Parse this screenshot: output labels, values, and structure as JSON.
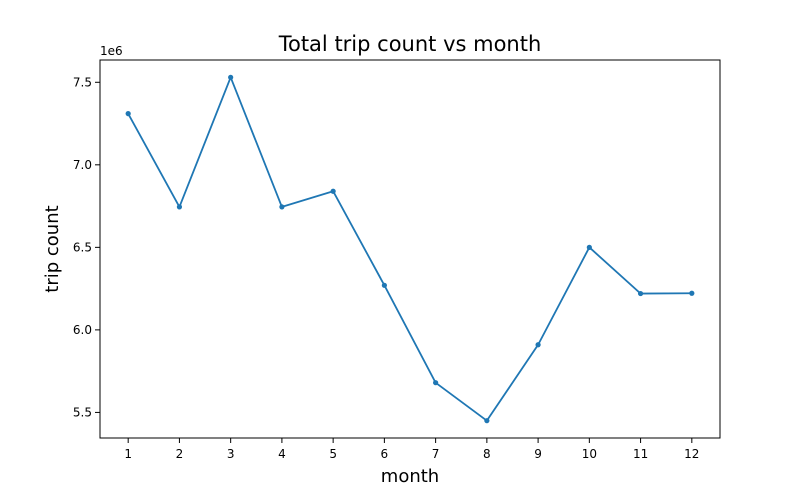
{
  "chart_data": {
    "type": "line",
    "title": "Total trip count vs month",
    "xlabel": "month",
    "ylabel": "trip count",
    "y_offset_label": "1e6",
    "x": [
      1,
      2,
      3,
      4,
      5,
      6,
      7,
      8,
      9,
      10,
      11,
      12
    ],
    "x_tick_labels": [
      "1",
      "2",
      "3",
      "4",
      "5",
      "6",
      "7",
      "8",
      "9",
      "10",
      "11",
      "12"
    ],
    "series": [
      {
        "values": [
          7310000,
          6745000,
          7530000,
          6745000,
          6840000,
          6270000,
          5680000,
          5450000,
          5910000,
          6500000,
          6220000,
          6222000
        ],
        "color": "#1f77b4",
        "marker": "circle"
      }
    ],
    "y_ticks": [
      5500000,
      6000000,
      6500000,
      7000000,
      7500000
    ],
    "y_tick_labels": [
      "5.5",
      "6.0",
      "6.5",
      "7.0",
      "7.5"
    ],
    "xlim": [
      0.45,
      12.55
    ],
    "ylim": [
      5345000,
      7635000
    ],
    "grid": false,
    "legend": "none"
  }
}
